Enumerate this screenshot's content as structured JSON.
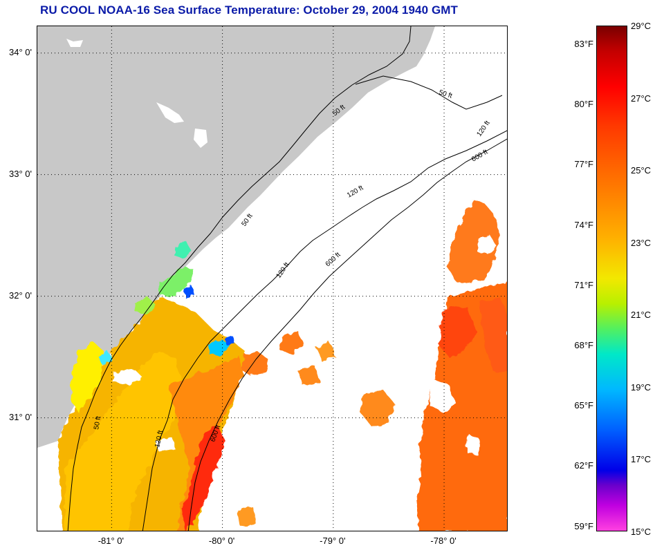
{
  "title": "RU COOL  NOAA-16  Sea Surface Temperature:  October 29, 2004 1940 GMT",
  "map": {
    "latitudes": [
      {
        "label": "34° 0'",
        "value": 34.0
      },
      {
        "label": "33° 0'",
        "value": 33.0
      },
      {
        "label": "32° 0'",
        "value": 32.0
      },
      {
        "label": "31° 0'",
        "value": 31.0
      }
    ],
    "longitudes": [
      {
        "label": "-81° 0'",
        "value": -81.0
      },
      {
        "label": "-80° 0'",
        "value": -80.0
      },
      {
        "label": "-79° 0'",
        "value": -79.0
      },
      {
        "label": "-78° 0'",
        "value": -78.0
      }
    ],
    "bounds": {
      "lon_min": -81.67,
      "lon_max": -77.42,
      "lat_min": 30.06,
      "lat_max": 34.22
    },
    "isobath_labels": [
      "50 ft",
      "120 ft",
      "600 ft"
    ],
    "colors": {
      "land": "#c8c8c8",
      "water_no_data": "#ffffff",
      "contour": "#000000",
      "grid": "#000000"
    }
  },
  "colorbar": {
    "fahrenheit": [
      "83°F",
      "80°F",
      "77°F",
      "74°F",
      "71°F",
      "68°F",
      "65°F",
      "62°F",
      "59°F"
    ],
    "celsius": [
      "29°C",
      "27°C",
      "25°C",
      "23°C",
      "21°C",
      "19°C",
      "17°C",
      "15°C"
    ]
  }
}
